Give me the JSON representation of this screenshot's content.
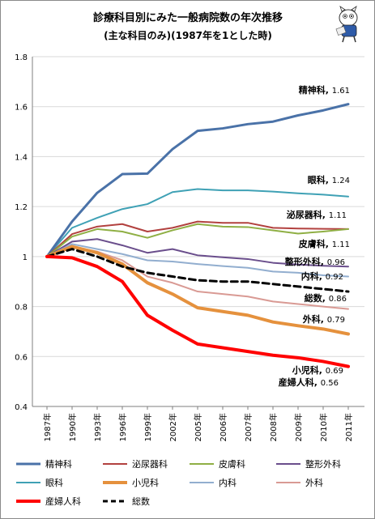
{
  "chart_data": {
    "type": "line",
    "title": "診療科目別にみた一般病院数の年次推移",
    "subtitle": "(主な科目のみ)(1987年を1とした時)",
    "categories": [
      "1987年",
      "1990年",
      "1993年",
      "1996年",
      "1999年",
      "2002年",
      "2005年",
      "2006年",
      "2007年",
      "2008年",
      "2009年",
      "2010年",
      "2011年"
    ],
    "ylim": [
      0.4,
      1.8
    ],
    "yticks": [
      "0.4",
      "0.6",
      "0.8",
      "1",
      "1.2",
      "1.4",
      "1.6",
      "1.8"
    ],
    "grid": true,
    "legend_position": "bottom",
    "series": [
      {
        "name": "精神科",
        "color": "#4A72A8",
        "width": 3,
        "dash": "",
        "label": "精神科",
        "label_value": "1.61",
        "label_color": "#000000",
        "values": [
          1.0,
          1.14,
          1.255,
          1.33,
          1.332,
          1.43,
          1.503,
          1.513,
          1.53,
          1.54,
          1.565,
          1.585,
          1.61
        ]
      },
      {
        "name": "泌尿器科",
        "color": "#B2413F",
        "width": 2,
        "dash": "",
        "label": "泌尿器科",
        "label_value": "1.11",
        "label_color": "#000000",
        "values": [
          1.0,
          1.09,
          1.12,
          1.13,
          1.1,
          1.115,
          1.14,
          1.135,
          1.135,
          1.115,
          1.112,
          1.111,
          1.11
        ]
      },
      {
        "name": "皮膚科",
        "color": "#8FAF44",
        "width": 2,
        "dash": "",
        "label": "皮膚科",
        "label_value": "1.11",
        "label_color": "#000000",
        "values": [
          1.0,
          1.08,
          1.11,
          1.1,
          1.075,
          1.105,
          1.13,
          1.12,
          1.118,
          1.105,
          1.092,
          1.1,
          1.11
        ]
      },
      {
        "name": "整形外科",
        "color": "#6A4E8C",
        "width": 2,
        "dash": "",
        "label": "整形外科",
        "label_value": "0.96",
        "label_color": "#000000",
        "values": [
          1.0,
          1.06,
          1.07,
          1.045,
          1.015,
          1.03,
          1.005,
          0.997,
          0.99,
          0.975,
          0.968,
          0.963,
          0.96
        ]
      },
      {
        "name": "眼科",
        "color": "#3FA1B5",
        "width": 2,
        "dash": "",
        "label": "眼科",
        "label_value": "1.24",
        "label_color": "#000000",
        "values": [
          1.0,
          1.115,
          1.155,
          1.19,
          1.21,
          1.258,
          1.27,
          1.265,
          1.265,
          1.26,
          1.253,
          1.248,
          1.24
        ]
      },
      {
        "name": "小児科",
        "color": "#E5913D",
        "width": 4,
        "dash": "",
        "label": "小児科",
        "label_value": "0.69",
        "label_color": "#000000",
        "values": [
          1.0,
          1.04,
          1.015,
          0.97,
          0.895,
          0.85,
          0.795,
          0.78,
          0.765,
          0.738,
          0.723,
          0.71,
          0.69
        ]
      },
      {
        "name": "内科",
        "color": "#92AECF",
        "width": 2,
        "dash": "",
        "label": "内科",
        "label_value": "0.92",
        "label_color": "#000000",
        "values": [
          1.0,
          1.05,
          1.03,
          1.01,
          0.985,
          0.98,
          0.97,
          0.962,
          0.955,
          0.94,
          0.935,
          0.925,
          0.92
        ]
      },
      {
        "name": "外科",
        "color": "#D99A94",
        "width": 2,
        "dash": "",
        "label": "外科",
        "label_value": "0.79",
        "label_color": "#000000",
        "values": [
          1.0,
          1.04,
          1.02,
          0.985,
          0.92,
          0.895,
          0.86,
          0.85,
          0.84,
          0.82,
          0.81,
          0.8,
          0.79
        ]
      },
      {
        "name": "産婦人科",
        "color": "#FF0000",
        "width": 4,
        "dash": "",
        "label": "産婦人科",
        "label_value": "0.56",
        "label_color": "#000000",
        "values": [
          1.0,
          0.995,
          0.96,
          0.9,
          0.765,
          0.705,
          0.65,
          0.635,
          0.62,
          0.605,
          0.595,
          0.58,
          0.56
        ]
      },
      {
        "name": "総数",
        "color": "#000000",
        "width": 3,
        "dash": "8,5",
        "label": "総数",
        "label_value": "0.86",
        "label_color": "#C00000",
        "values": [
          1.0,
          1.03,
          1.0,
          0.96,
          0.935,
          0.92,
          0.905,
          0.9,
          0.9,
          0.89,
          0.88,
          0.87,
          0.86
        ]
      }
    ]
  }
}
